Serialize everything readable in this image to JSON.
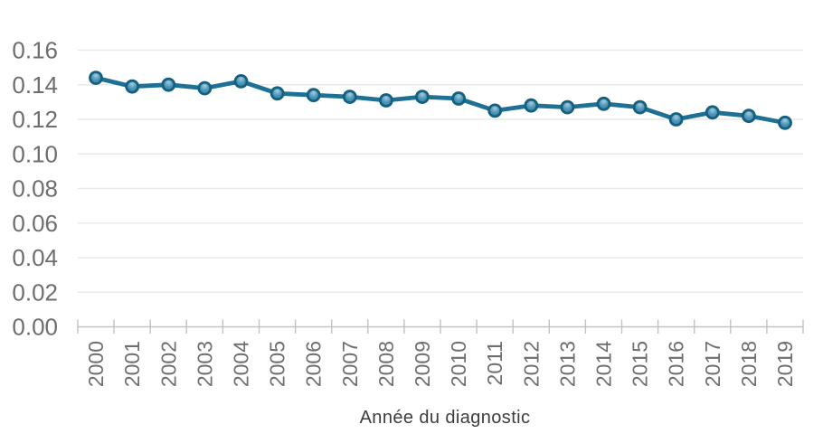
{
  "chart_data": {
    "type": "line",
    "title": "",
    "xlabel": "Année du diagnostic",
    "ylabel": "",
    "categories": [
      "2000",
      "2001",
      "2002",
      "2003",
      "2004",
      "2005",
      "2006",
      "2007",
      "2008",
      "2009",
      "2010",
      "2011",
      "2012",
      "2013",
      "2014",
      "2015",
      "2016",
      "2017",
      "2018",
      "2019"
    ],
    "series": [
      {
        "name": "",
        "values": [
          0.144,
          0.139,
          0.14,
          0.138,
          0.142,
          0.135,
          0.134,
          0.133,
          0.131,
          0.133,
          0.132,
          0.125,
          0.128,
          0.127,
          0.129,
          0.127,
          0.12,
          0.124,
          0.122,
          0.118
        ]
      }
    ],
    "ylim": [
      0,
      0.16
    ],
    "ytick_step": 0.02,
    "ytick_format_decimals": 2,
    "grid": true,
    "legend_position": "none",
    "x_labels_rotated_degrees": -90,
    "style": {
      "line_color": "#1f7095",
      "marker_fill": "#4e95b8",
      "marker_highlight": "#a3ccde",
      "marker_edge_dark": "#2f7ea2",
      "marker_stroke": "#14607f",
      "grid_color": "#e9e9e9",
      "axis_color": "#c2c2c2",
      "tick_label_color": "#6e6e6e",
      "axis_title_color": "#3d3d3d",
      "background": "#ffffff"
    }
  }
}
